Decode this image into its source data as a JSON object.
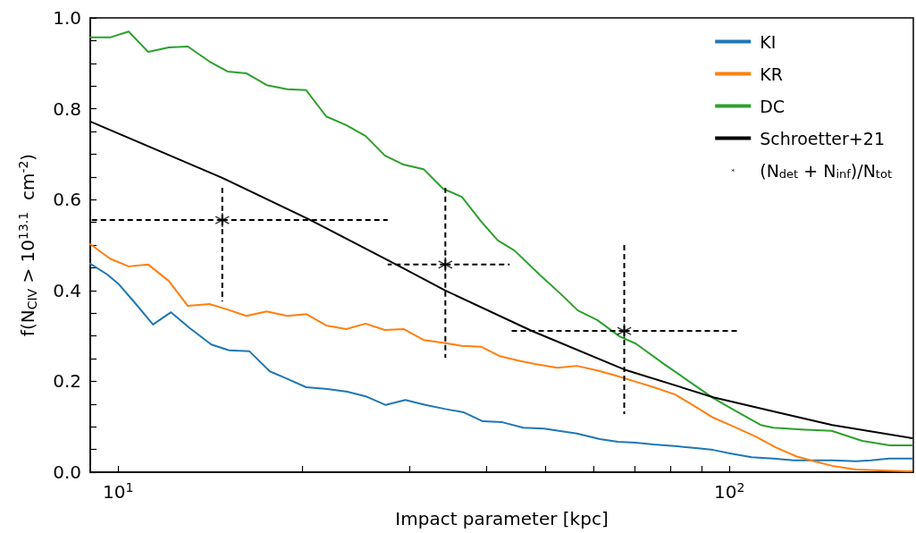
{
  "chart_data": {
    "type": "line",
    "xlabel": "Impact parameter [kpc]",
    "ylabel": "f(N$_{CIV}$ > 10$^{13.1}$  cm$^{-2}$)",
    "log": "x",
    "xlim": [
      9,
      200
    ],
    "xticks": [
      {
        "value": 10,
        "label": "10$^{1}$"
      },
      {
        "value": 20,
        "label": null
      },
      {
        "value": 30,
        "label": null
      },
      {
        "value": 40,
        "label": null
      },
      {
        "value": 50,
        "label": null
      },
      {
        "value": 60,
        "label": null
      },
      {
        "value": 70,
        "label": null
      },
      {
        "value": 80,
        "label": null
      },
      {
        "value": 90,
        "label": null
      },
      {
        "value": 100,
        "label": "10$^{2}$"
      }
    ],
    "ylim": [
      0,
      1
    ],
    "yticks": [
      {
        "value": 0,
        "label": "0.0"
      },
      {
        "value": 0.05,
        "label": null
      },
      {
        "value": 0.1,
        "label": null
      },
      {
        "value": 0.15,
        "label": null
      },
      0.2,
      {
        "value": 0.25,
        "label": null
      },
      {
        "value": 0.3,
        "label": null
      },
      {
        "value": 0.35,
        "label": null
      },
      0.4,
      {
        "value": 0.45,
        "label": null
      },
      {
        "value": 0.5,
        "label": null
      },
      {
        "value": 0.55,
        "label": null
      },
      0.6,
      {
        "value": 0.65,
        "label": null
      },
      {
        "value": 0.7,
        "label": null
      },
      {
        "value": 0.75,
        "label": null
      },
      0.8,
      {
        "value": 0.85,
        "label": null
      },
      {
        "value": 0.9,
        "label": null
      },
      {
        "value": 0.95,
        "label": null
      },
      {
        "value": 1.0,
        "label": "1.0"
      }
    ],
    "grid": false,
    "legend": "top right",
    "marker": "none",
    "series": [
      {
        "name": "KI",
        "color": "#1f77b4",
        "x": [
          9.0,
          9.6,
          10,
          10.6,
          11.4,
          12.2,
          13.1,
          14.2,
          15.2,
          16.4,
          17.7,
          18.8,
          20.3,
          22.0,
          23.7,
          25.4,
          27.4,
          29.5,
          31.8,
          34.3,
          36.7,
          39.5,
          42.5,
          46.0,
          49.7,
          56.3,
          61.4,
          65.7,
          70.3,
          75.2,
          82.2,
          88.1,
          94.1,
          100.7,
          108.7,
          118,
          127.4,
          137.6,
          147.3,
          161.1,
          170.6,
          182.4,
          199
        ],
        "values": [
          0.459,
          0.435,
          0.415,
          0.376,
          0.325,
          0.352,
          0.317,
          0.281,
          0.268,
          0.266,
          0.222,
          0.207,
          0.187,
          0.183,
          0.177,
          0.167,
          0.148,
          0.159,
          0.148,
          0.139,
          0.132,
          0.112,
          0.11,
          0.098,
          0.096,
          0.085,
          0.073,
          0.067,
          0.065,
          0.061,
          0.057,
          0.053,
          0.049,
          0.041,
          0.033,
          0.03,
          0.026,
          0.026,
          0.026,
          0.024,
          0.026,
          0.03,
          0.03
        ]
      },
      {
        "name": "KR",
        "color": "#ff7f0e",
        "x": [
          9.0,
          9.7,
          10.4,
          11.2,
          12.1,
          13.0,
          14.1,
          15.1,
          16.2,
          17.5,
          18.9,
          20.3,
          21.9,
          23.6,
          25.4,
          27.3,
          29.3,
          31.6,
          34.0,
          36.5,
          39.3,
          42.0,
          45.0,
          48.1,
          52.3,
          56.3,
          60.8,
          65.0,
          70.3,
          75.2,
          81.5,
          87.1,
          94.1,
          101.7,
          110.2,
          119.0,
          128.6,
          137.6,
          147.3,
          161.1,
          176.4,
          199
        ],
        "values": [
          0.502,
          0.47,
          0.453,
          0.457,
          0.421,
          0.366,
          0.37,
          0.358,
          0.344,
          0.354,
          0.344,
          0.348,
          0.323,
          0.315,
          0.327,
          0.313,
          0.315,
          0.291,
          0.285,
          0.278,
          0.276,
          0.256,
          0.246,
          0.238,
          0.23,
          0.234,
          0.224,
          0.213,
          0.199,
          0.187,
          0.171,
          0.148,
          0.12,
          0.1,
          0.079,
          0.055,
          0.035,
          0.024,
          0.014,
          0.006,
          0.004,
          0.002
        ]
      },
      {
        "name": "DC",
        "color": "#2ca02c",
        "x": [
          9.0,
          9.7,
          10.4,
          11.2,
          12.1,
          13.0,
          14.1,
          15.1,
          16.2,
          17.5,
          18.9,
          20.3,
          21.9,
          23.6,
          25.4,
          27.3,
          29.3,
          31.6,
          34.0,
          36.5,
          39.3,
          41.8,
          44.5,
          48.9,
          53.2,
          56.5,
          60.8,
          66.1,
          70.3,
          78.2,
          94.1,
          101.4,
          112.5,
          118,
          131,
          147,
          165,
          183,
          199
        ],
        "values": [
          0.957,
          0.957,
          0.97,
          0.925,
          0.935,
          0.937,
          0.904,
          0.882,
          0.878,
          0.852,
          0.843,
          0.841,
          0.783,
          0.764,
          0.74,
          0.697,
          0.677,
          0.667,
          0.624,
          0.606,
          0.551,
          0.51,
          0.488,
          0.435,
          0.39,
          0.356,
          0.335,
          0.299,
          0.283,
          0.238,
          0.163,
          0.138,
          0.104,
          0.098,
          0.094,
          0.091,
          0.069,
          0.059,
          0.059
        ]
      },
      {
        "name": "Schroetter+21",
        "color": "#000000",
        "x": [
          9.0,
          14.8,
          20.5,
          28.7,
          34.3,
          47.5,
          67.3,
          94.1,
          118,
          147.3,
          199
        ],
        "values": [
          0.772,
          0.648,
          0.557,
          0.455,
          0.4,
          0.311,
          0.226,
          0.165,
          0.134,
          0.104,
          0.075
        ]
      },
      {
        "name": "(N$_{det}$ + N$_{inf}$)/N$_{tot}$",
        "type": "scatter",
        "color": "#000000",
        "marker": "cross",
        "line_style": "dashed",
        "x": [
          14.8,
          34.3,
          67.3
        ],
        "values": [
          0.555,
          0.457,
          0.311
        ],
        "errors": [
          [
            0.376,
            0.626
          ],
          [
            0.252,
            0.626
          ],
          [
            0.128,
            0.502
          ]
        ],
        "xerrors": [
          [
            9.0,
            27.6
          ],
          [
            27.6,
            43.7
          ],
          [
            44.0,
            103
          ]
        ]
      }
    ]
  }
}
